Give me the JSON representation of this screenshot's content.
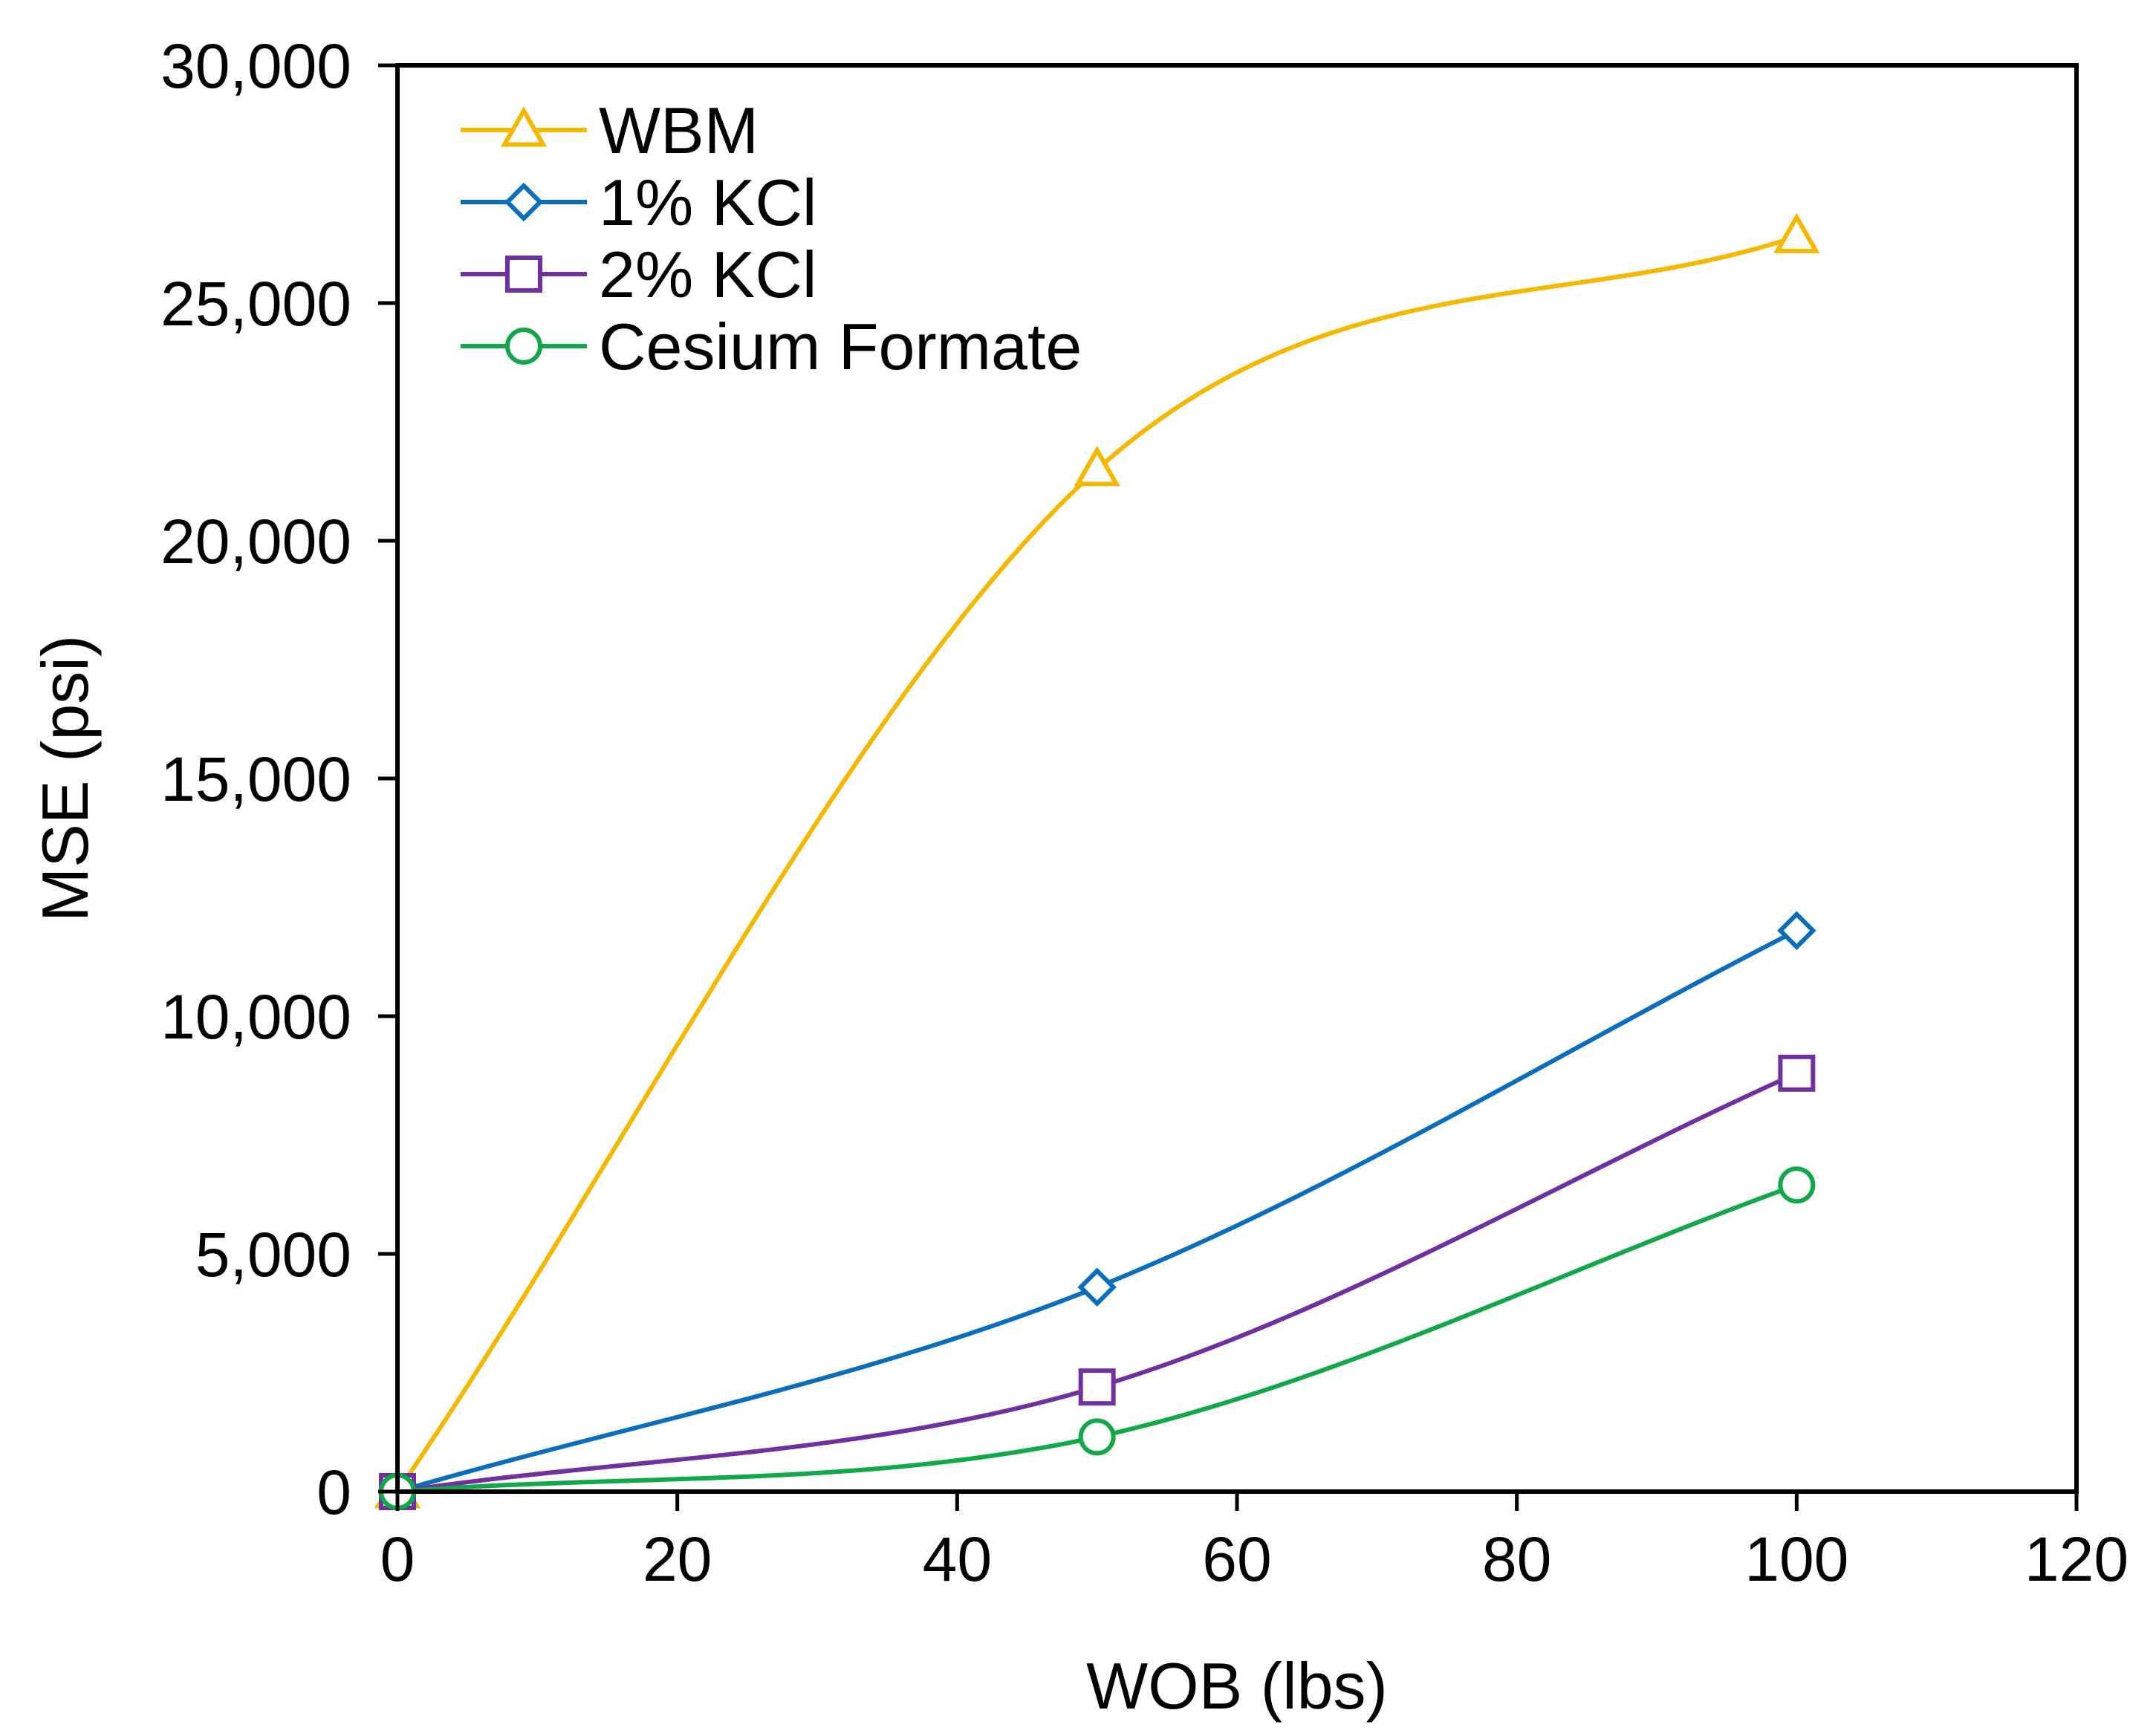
{
  "chart_data": {
    "type": "line",
    "title": "",
    "xlabel": "WOB (lbs)",
    "ylabel": "MSE (psi)",
    "xlim": [
      0,
      120
    ],
    "ylim": [
      0,
      30000
    ],
    "x_ticks": [
      0,
      20,
      40,
      60,
      80,
      100,
      120
    ],
    "x_tick_labels": [
      "0",
      "20",
      "40",
      "60",
      "80",
      "100",
      "120"
    ],
    "y_ticks": [
      0,
      5000,
      10000,
      15000,
      20000,
      25000,
      30000
    ],
    "y_tick_labels": [
      "0",
      "5,000",
      "10,000",
      "15,000",
      "20,000",
      "25,000",
      "30,000"
    ],
    "grid": false,
    "legend_position": "top-left",
    "x": [
      0,
      50,
      100
    ],
    "series": [
      {
        "name": "WBM",
        "values": [
          0,
          21500,
          26400
        ],
        "color": "#F5B800",
        "marker": "triangle",
        "error": [
          0,
          150,
          150
        ]
      },
      {
        "name": "1% KCl",
        "values": [
          0,
          4300,
          11800
        ],
        "color": "#0A6EBD",
        "marker": "diamond"
      },
      {
        "name": "2% KCl",
        "values": [
          0,
          2200,
          8800
        ],
        "color": "#7030A0",
        "marker": "square"
      },
      {
        "name": "Cesium Formate",
        "values": [
          0,
          1150,
          6450
        ],
        "color": "#12A84A",
        "marker": "circle"
      }
    ]
  }
}
